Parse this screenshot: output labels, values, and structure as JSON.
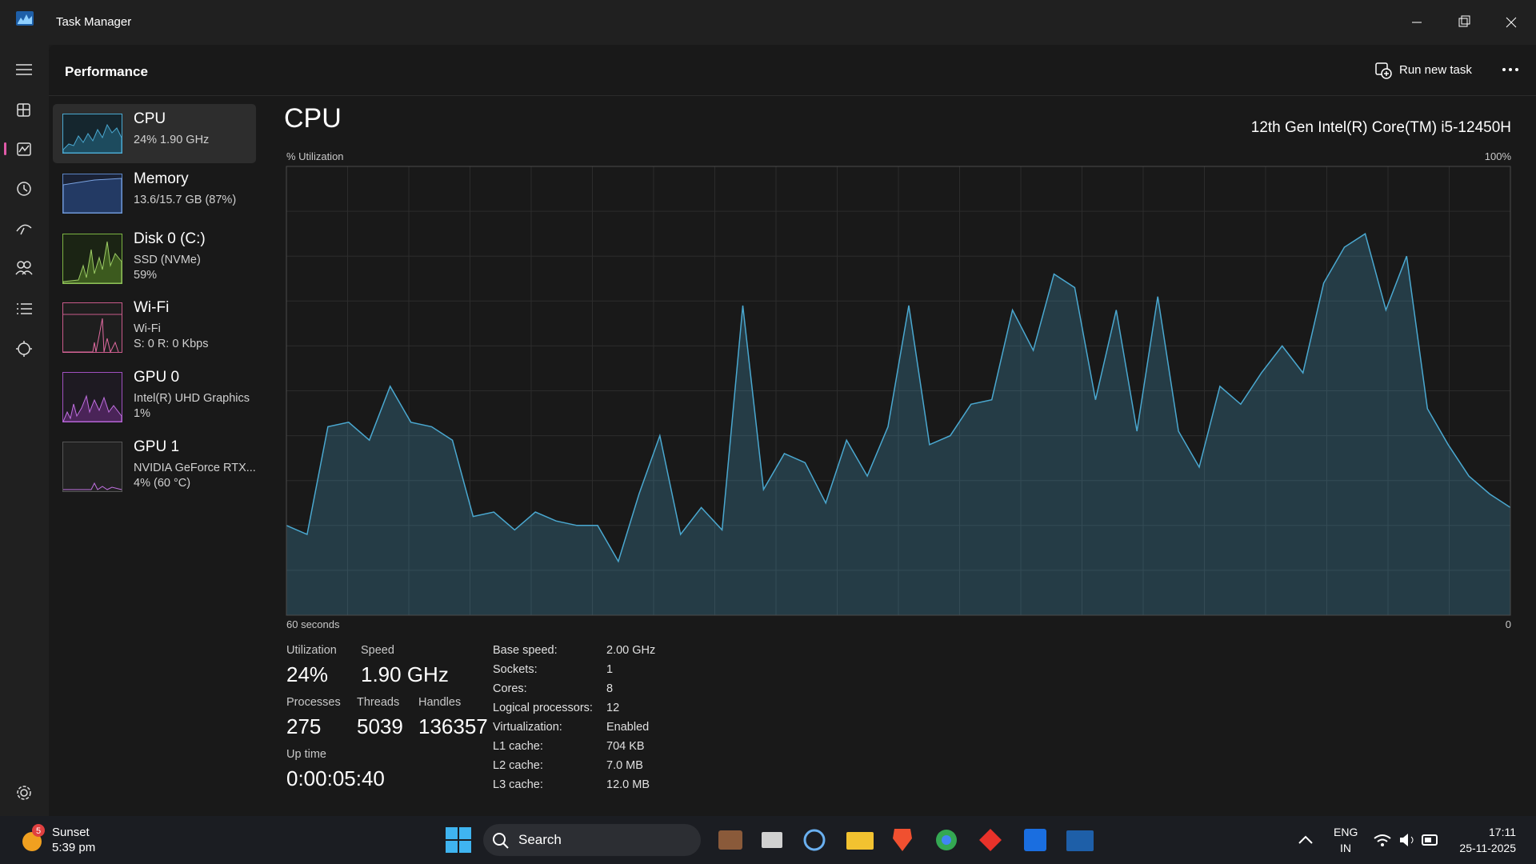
{
  "window": {
    "title": "Task Manager"
  },
  "header": {
    "title": "Performance",
    "run_new_task": "Run new task"
  },
  "resources": [
    {
      "name": "CPU",
      "details": [
        "24%  1.90 GHz"
      ]
    },
    {
      "name": "Memory",
      "details": [
        "13.6/15.7 GB (87%)"
      ]
    },
    {
      "name": "Disk 0 (C:)",
      "details": [
        "SSD (NVMe)",
        "59%"
      ]
    },
    {
      "name": "Wi-Fi",
      "details": [
        "Wi-Fi",
        "S: 0 R: 0 Kbps"
      ]
    },
    {
      "name": "GPU 0",
      "details": [
        "Intel(R) UHD Graphics",
        "1%"
      ]
    },
    {
      "name": "GPU 1",
      "details": [
        "NVIDIA GeForce RTX...",
        "4% (60 °C)"
      ]
    }
  ],
  "chart_data": {
    "type": "area",
    "title": "CPU",
    "subtitle": "12th Gen Intel(R) Core(TM) i5-12450H",
    "y_label": "% Utilization",
    "y_max_label": "100%",
    "x_start_label": "60 seconds",
    "x_end_label": "0",
    "x": [
      59,
      58,
      57,
      56,
      55,
      54,
      53,
      52,
      51,
      50,
      49,
      48,
      47,
      46,
      45,
      44,
      43,
      42,
      41,
      40,
      39,
      38,
      37,
      36,
      35,
      34,
      33,
      32,
      31,
      30,
      29,
      28,
      27,
      26,
      25,
      24,
      23,
      22,
      21,
      20,
      19,
      18,
      17,
      16,
      15,
      14,
      13,
      12,
      11,
      10,
      9,
      8,
      7,
      6,
      5,
      4,
      3,
      2,
      1,
      0
    ],
    "values": [
      20,
      18,
      42,
      43,
      39,
      51,
      43,
      42,
      39,
      22,
      23,
      19,
      23,
      21,
      20,
      20,
      12,
      27,
      40,
      18,
      24,
      19,
      69,
      28,
      36,
      34,
      25,
      39,
      31,
      42,
      69,
      38,
      40,
      47,
      48,
      68,
      59,
      76,
      73,
      48,
      68,
      41,
      71,
      41,
      33,
      51,
      47,
      54,
      60,
      54,
      74,
      82,
      85,
      68,
      80,
      46,
      38,
      31,
      27,
      24
    ],
    "xlim": [
      59,
      0
    ],
    "ylim": [
      0,
      100
    ],
    "grid": true,
    "x_grid_divisions": 20,
    "y_grid_divisions": 10,
    "color": "#4aa8d0"
  },
  "stats": [
    {
      "label": "Utilization",
      "value": "24%"
    },
    {
      "label": "Speed",
      "value": "1.90 GHz"
    },
    {
      "label": "Processes",
      "value": "275"
    },
    {
      "label": "Threads",
      "value": "5039"
    },
    {
      "label": "Handles",
      "value": "136357"
    },
    {
      "label": "Up time",
      "value": "0:00:05:40"
    }
  ],
  "specs": [
    {
      "label": "Base speed:",
      "value": "2.00 GHz"
    },
    {
      "label": "Sockets:",
      "value": "1"
    },
    {
      "label": "Cores:",
      "value": "8"
    },
    {
      "label": "Logical processors:",
      "value": "12"
    },
    {
      "label": "Virtualization:",
      "value": "Enabled"
    },
    {
      "label": "L1 cache:",
      "value": "704 KB"
    },
    {
      "label": "L2 cache:",
      "value": "7.0 MB"
    },
    {
      "label": "L3 cache:",
      "value": "12.0 MB"
    }
  ],
  "taskbar": {
    "weather": {
      "badge": "5",
      "title": "Sunset",
      "time": "5:39 pm"
    },
    "search": "Search",
    "language": [
      "ENG",
      "IN"
    ],
    "clock": {
      "time": "17:11",
      "date": "25-11-2025"
    }
  }
}
